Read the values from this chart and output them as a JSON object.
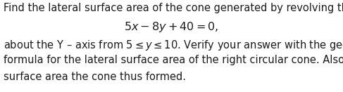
{
  "line1": "Find the lateral surface area of the cone generated by revolving the line segment",
  "line2": "$5x - 8y + 40 = 0,$",
  "line3_a": "about the Y – axis from ",
  "line3_b": "$5 \\leq y \\leq 10$",
  "line3_c": ". Verify your answer with the geometric",
  "line4": "formula for the lateral surface area of the right circular cone. Also, find the total",
  "line5": "surface area the cone thus formed.",
  "font_size_body": 10.5,
  "font_size_eq": 11.5,
  "text_color": "#1c1c1c",
  "bg_color": "#ffffff",
  "fig_width": 4.87,
  "fig_height": 1.31,
  "dpi": 100
}
